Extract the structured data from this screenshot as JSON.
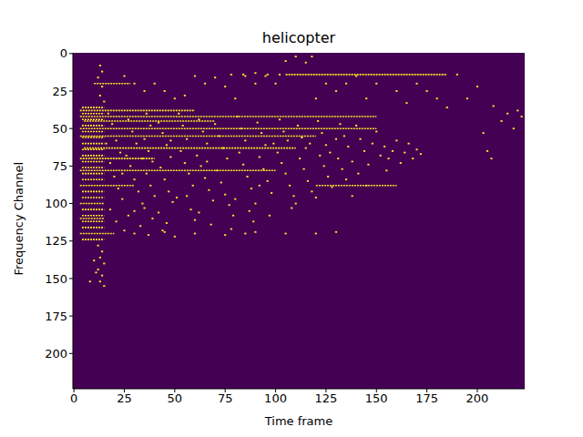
{
  "chart_data": {
    "type": "heatmap",
    "title": "helicopter",
    "x_label": "Time frame",
    "y_label": "Frequency Channel",
    "xlim": [
      -0.5,
      223.5
    ],
    "ylim": [
      223.5,
      -0.5
    ],
    "xticks": [
      0,
      25,
      50,
      75,
      100,
      125,
      150,
      175,
      200
    ],
    "yticks": [
      0,
      25,
      50,
      75,
      100,
      125,
      150,
      175,
      200
    ],
    "color": "#fde725",
    "grid": false,
    "runs": [
      [
        14,
        105,
        185
      ],
      [
        20,
        10,
        28
      ],
      [
        38,
        3,
        60
      ],
      [
        42,
        3,
        150
      ],
      [
        45,
        5,
        70
      ],
      [
        50,
        3,
        150
      ],
      [
        55,
        3,
        120
      ],
      [
        63,
        5,
        110
      ],
      [
        70,
        3,
        40
      ],
      [
        78,
        3,
        100
      ],
      [
        88,
        3,
        30
      ],
      [
        88,
        120,
        160
      ],
      [
        100,
        3,
        15
      ],
      [
        110,
        3,
        15
      ],
      [
        120,
        3,
        20
      ],
      [
        36,
        4,
        15
      ],
      [
        40,
        4,
        15
      ],
      [
        44,
        4,
        15
      ],
      [
        48,
        4,
        15
      ],
      [
        52,
        4,
        15
      ],
      [
        56,
        4,
        15
      ],
      [
        60,
        4,
        15
      ],
      [
        64,
        4,
        15
      ],
      [
        68,
        4,
        15
      ],
      [
        72,
        4,
        15
      ],
      [
        76,
        4,
        15
      ],
      [
        80,
        4,
        15
      ],
      [
        84,
        4,
        15
      ],
      [
        92,
        4,
        15
      ],
      [
        96,
        4,
        15
      ],
      [
        104,
        4,
        15
      ],
      [
        108,
        4,
        15
      ],
      [
        112,
        4,
        15
      ],
      [
        116,
        4,
        15
      ],
      [
        124,
        4,
        15
      ]
    ],
    "cells": [
      [
        13,
        8
      ],
      [
        14,
        12
      ],
      [
        12,
        16
      ],
      [
        14,
        22
      ],
      [
        13,
        28
      ],
      [
        15,
        32
      ],
      [
        12,
        128
      ],
      [
        14,
        132
      ],
      [
        13,
        136
      ],
      [
        15,
        140
      ],
      [
        12,
        144
      ],
      [
        14,
        148
      ],
      [
        13,
        152
      ],
      [
        15,
        155
      ],
      [
        8,
        152
      ],
      [
        11,
        146
      ],
      [
        10,
        138
      ],
      [
        60,
        15
      ],
      [
        65,
        20
      ],
      [
        70,
        16
      ],
      [
        85,
        15
      ],
      [
        90,
        20
      ],
      [
        95,
        15
      ],
      [
        100,
        20
      ],
      [
        105,
        5
      ],
      [
        110,
        2
      ],
      [
        115,
        6
      ],
      [
        118,
        2
      ],
      [
        125,
        20
      ],
      [
        130,
        25
      ],
      [
        135,
        20
      ],
      [
        140,
        15
      ],
      [
        150,
        20
      ],
      [
        160,
        25
      ],
      [
        170,
        20
      ],
      [
        175,
        25
      ],
      [
        180,
        30
      ],
      [
        190,
        14
      ],
      [
        195,
        30
      ],
      [
        200,
        22
      ],
      [
        208,
        35
      ],
      [
        212,
        45
      ],
      [
        215,
        40
      ],
      [
        220,
        38
      ],
      [
        205,
        65
      ],
      [
        207,
        70
      ],
      [
        222,
        42
      ],
      [
        218,
        50
      ],
      [
        203,
        53
      ],
      [
        45,
        25
      ],
      [
        50,
        30
      ],
      [
        40,
        20
      ],
      [
        35,
        25
      ],
      [
        30,
        20
      ],
      [
        25,
        15
      ],
      [
        55,
        28
      ],
      [
        75,
        22
      ],
      [
        80,
        30
      ],
      [
        120,
        30
      ],
      [
        145,
        30
      ],
      [
        165,
        33
      ],
      [
        185,
        36
      ],
      [
        17,
        40
      ],
      [
        19,
        47
      ],
      [
        21,
        58
      ],
      [
        23,
        66
      ],
      [
        18,
        73
      ],
      [
        20,
        82
      ],
      [
        22,
        90
      ],
      [
        24,
        97
      ],
      [
        18,
        104
      ],
      [
        21,
        112
      ],
      [
        25,
        118
      ],
      [
        27,
        44
      ],
      [
        29,
        52
      ],
      [
        31,
        60
      ],
      [
        26,
        68
      ],
      [
        28,
        75
      ],
      [
        30,
        84
      ],
      [
        32,
        92
      ],
      [
        34,
        100
      ],
      [
        27,
        108
      ],
      [
        33,
        115
      ],
      [
        36,
        40
      ],
      [
        38,
        48
      ],
      [
        35,
        57
      ],
      [
        37,
        65
      ],
      [
        39,
        72
      ],
      [
        36,
        80
      ],
      [
        38,
        88
      ],
      [
        40,
        95
      ],
      [
        35,
        103
      ],
      [
        39,
        110
      ],
      [
        37,
        121
      ],
      [
        16,
        60
      ],
      [
        24,
        80
      ],
      [
        30,
        105
      ],
      [
        34,
        70
      ],
      [
        42,
        46
      ],
      [
        44,
        53
      ],
      [
        46,
        61
      ],
      [
        48,
        69
      ],
      [
        43,
        76
      ],
      [
        45,
        84
      ],
      [
        47,
        92
      ],
      [
        49,
        99
      ],
      [
        42,
        106
      ],
      [
        46,
        113
      ],
      [
        50,
        122
      ],
      [
        52,
        40
      ],
      [
        54,
        48
      ],
      [
        56,
        57
      ],
      [
        53,
        65
      ],
      [
        55,
        73
      ],
      [
        57,
        80
      ],
      [
        59,
        88
      ],
      [
        51,
        96
      ],
      [
        58,
        104
      ],
      [
        60,
        111
      ],
      [
        62,
        44
      ],
      [
        64,
        52
      ],
      [
        66,
        60
      ],
      [
        61,
        68
      ],
      [
        63,
        75
      ],
      [
        65,
        83
      ],
      [
        67,
        91
      ],
      [
        69,
        98
      ],
      [
        62,
        106
      ],
      [
        68,
        114
      ],
      [
        70,
        47
      ],
      [
        48,
        58
      ],
      [
        56,
        95
      ],
      [
        44,
        118
      ],
      [
        66,
        72
      ],
      [
        72,
        55
      ],
      [
        74,
        63
      ],
      [
        76,
        70
      ],
      [
        71,
        78
      ],
      [
        73,
        86
      ],
      [
        75,
        94
      ],
      [
        77,
        101
      ],
      [
        79,
        108
      ],
      [
        78,
        117
      ],
      [
        81,
        42
      ],
      [
        83,
        50
      ],
      [
        85,
        58
      ],
      [
        82,
        66
      ],
      [
        84,
        74
      ],
      [
        86,
        82
      ],
      [
        88,
        90
      ],
      [
        80,
        97
      ],
      [
        87,
        105
      ],
      [
        89,
        112
      ],
      [
        91,
        46
      ],
      [
        93,
        53
      ],
      [
        95,
        61
      ],
      [
        92,
        69
      ],
      [
        94,
        77
      ],
      [
        96,
        85
      ],
      [
        98,
        93
      ],
      [
        90,
        100
      ],
      [
        97,
        108
      ],
      [
        99,
        60
      ],
      [
        85,
        120
      ],
      [
        92,
        88
      ],
      [
        102,
        44
      ],
      [
        104,
        52
      ],
      [
        106,
        58
      ],
      [
        101,
        66
      ],
      [
        103,
        73
      ],
      [
        105,
        80
      ],
      [
        107,
        88
      ],
      [
        109,
        95
      ],
      [
        108,
        103
      ],
      [
        111,
        48
      ],
      [
        113,
        56
      ],
      [
        115,
        63
      ],
      [
        112,
        70
      ],
      [
        114,
        77
      ],
      [
        116,
        85
      ],
      [
        118,
        92
      ],
      [
        110,
        100
      ],
      [
        117,
        60
      ],
      [
        121,
        45
      ],
      [
        123,
        53
      ],
      [
        125,
        61
      ],
      [
        122,
        68
      ],
      [
        124,
        75
      ],
      [
        126,
        82
      ],
      [
        128,
        89
      ],
      [
        120,
        96
      ],
      [
        127,
        66
      ],
      [
        130,
        57
      ],
      [
        132,
        47
      ],
      [
        134,
        55
      ],
      [
        136,
        62
      ],
      [
        131,
        70
      ],
      [
        133,
        77
      ],
      [
        135,
        84
      ],
      [
        138,
        72
      ],
      [
        140,
        48
      ],
      [
        142,
        57
      ],
      [
        144,
        65
      ],
      [
        141,
        80
      ],
      [
        146,
        74
      ],
      [
        148,
        60
      ],
      [
        150,
        52
      ],
      [
        152,
        68
      ],
      [
        154,
        62
      ],
      [
        156,
        70
      ],
      [
        158,
        65
      ],
      [
        160,
        58
      ],
      [
        162,
        73
      ],
      [
        164,
        66
      ],
      [
        166,
        60
      ],
      [
        168,
        70
      ],
      [
        170,
        64
      ],
      [
        172,
        67
      ],
      [
        155,
        78
      ],
      [
        145,
        88
      ],
      [
        138,
        95
      ],
      [
        30,
        120
      ],
      [
        45,
        119
      ],
      [
        60,
        120
      ],
      [
        75,
        121
      ],
      [
        90,
        119
      ],
      [
        105,
        120
      ],
      [
        120,
        120
      ],
      [
        130,
        119
      ],
      [
        78,
        14
      ],
      [
        84,
        14
      ],
      [
        90,
        13
      ],
      [
        96,
        14
      ],
      [
        102,
        14
      ]
    ]
  }
}
